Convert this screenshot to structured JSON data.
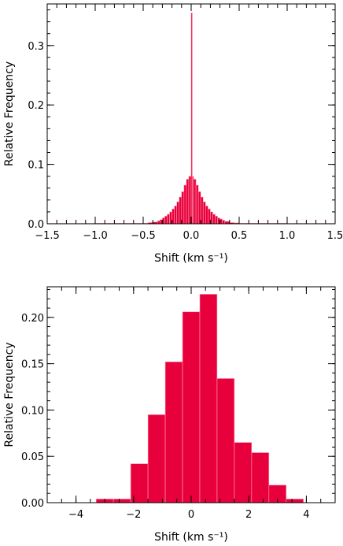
{
  "colors": {
    "bar_fill": "#e8003c",
    "bar_edge": "#ff9fb5",
    "axis": "#000000"
  },
  "chart_data": [
    {
      "type": "bar",
      "subtype": "histogram",
      "xlabel": "Shift (km s⁻¹)",
      "ylabel": "Relative Frequency",
      "xlim": [
        -1.5,
        1.5
      ],
      "ylim": [
        0.0,
        0.37
      ],
      "xticks": [
        -1.5,
        -1.0,
        -0.5,
        0.0,
        0.5,
        1.0,
        1.5
      ],
      "xtick_labels": [
        "−1.5",
        "−1.0",
        "−0.5",
        "0.0",
        "0.5",
        "1.0",
        "1.5"
      ],
      "yticks": [
        0.0,
        0.1,
        0.2,
        0.3
      ],
      "ytick_labels": [
        "0.0",
        "0.1",
        "0.2",
        "0.3"
      ],
      "bin_width": 0.025,
      "bins": [
        {
          "x0": -1.5,
          "x1": -1.0,
          "value": 0.0005
        },
        {
          "x0": -1.0,
          "x1": -0.5,
          "value": 0.0008
        },
        {
          "x0": -0.5,
          "x1": -0.45,
          "value": 0.001
        },
        {
          "x0": -0.45,
          "x1": -0.4,
          "value": 0.002
        },
        {
          "x0": -0.4,
          "x1": -0.35,
          "value": 0.003
        },
        {
          "x0": -0.35,
          "x1": -0.325,
          "value": 0.005
        },
        {
          "x0": -0.325,
          "x1": -0.3,
          "value": 0.007
        },
        {
          "x0": -0.3,
          "x1": -0.275,
          "value": 0.01
        },
        {
          "x0": -0.275,
          "x1": -0.25,
          "value": 0.013
        },
        {
          "x0": -0.25,
          "x1": -0.225,
          "value": 0.016
        },
        {
          "x0": -0.225,
          "x1": -0.2,
          "value": 0.02
        },
        {
          "x0": -0.2,
          "x1": -0.175,
          "value": 0.025
        },
        {
          "x0": -0.175,
          "x1": -0.15,
          "value": 0.03
        },
        {
          "x0": -0.15,
          "x1": -0.125,
          "value": 0.037
        },
        {
          "x0": -0.125,
          "x1": -0.1,
          "value": 0.045
        },
        {
          "x0": -0.1,
          "x1": -0.075,
          "value": 0.054
        },
        {
          "x0": -0.075,
          "x1": -0.05,
          "value": 0.065
        },
        {
          "x0": -0.05,
          "x1": -0.025,
          "value": 0.075
        },
        {
          "x0": -0.025,
          "x1": 0.0,
          "value": 0.08
        },
        {
          "x0": 0.0,
          "x1": 0.012,
          "value": 0.355
        },
        {
          "x0": 0.012,
          "x1": 0.025,
          "value": 0.08
        },
        {
          "x0": 0.025,
          "x1": 0.05,
          "value": 0.075
        },
        {
          "x0": 0.05,
          "x1": 0.075,
          "value": 0.065
        },
        {
          "x0": 0.075,
          "x1": 0.1,
          "value": 0.054
        },
        {
          "x0": 0.1,
          "x1": 0.125,
          "value": 0.045
        },
        {
          "x0": 0.125,
          "x1": 0.15,
          "value": 0.037
        },
        {
          "x0": 0.15,
          "x1": 0.175,
          "value": 0.03
        },
        {
          "x0": 0.175,
          "x1": 0.2,
          "value": 0.025
        },
        {
          "x0": 0.2,
          "x1": 0.225,
          "value": 0.02
        },
        {
          "x0": 0.225,
          "x1": 0.25,
          "value": 0.016
        },
        {
          "x0": 0.25,
          "x1": 0.275,
          "value": 0.013
        },
        {
          "x0": 0.275,
          "x1": 0.3,
          "value": 0.01
        },
        {
          "x0": 0.3,
          "x1": 0.325,
          "value": 0.008
        },
        {
          "x0": 0.325,
          "x1": 0.35,
          "value": 0.006
        },
        {
          "x0": 0.35,
          "x1": 0.4,
          "value": 0.004
        },
        {
          "x0": 0.4,
          "x1": 0.45,
          "value": 0.002
        },
        {
          "x0": 0.45,
          "x1": 0.5,
          "value": 0.0015
        },
        {
          "x0": 0.5,
          "x1": 1.0,
          "value": 0.0008
        },
        {
          "x0": 1.0,
          "x1": 1.5,
          "value": 0.0005
        }
      ]
    },
    {
      "type": "bar",
      "subtype": "histogram",
      "xlabel": "Shift (km s⁻¹)",
      "ylabel": "Relative Frequency",
      "xlim": [
        -5.0,
        5.0
      ],
      "ylim": [
        0.0,
        0.233
      ],
      "xticks": [
        -4,
        -2,
        0,
        2,
        4
      ],
      "xtick_labels": [
        "−4",
        "−2",
        "0",
        "2",
        "4"
      ],
      "yticks": [
        0.0,
        0.05,
        0.1,
        0.15,
        0.2
      ],
      "ytick_labels": [
        "0.00",
        "0.05",
        "0.10",
        "0.15",
        "0.20"
      ],
      "bin_width": 0.6,
      "bins": [
        {
          "x0": -3.3,
          "x1": -2.7,
          "value": 0.004
        },
        {
          "x0": -2.7,
          "x1": -2.1,
          "value": 0.004
        },
        {
          "x0": -2.1,
          "x1": -1.5,
          "value": 0.042
        },
        {
          "x0": -1.5,
          "x1": -0.9,
          "value": 0.095
        },
        {
          "x0": -0.9,
          "x1": -0.3,
          "value": 0.152
        },
        {
          "x0": -0.3,
          "x1": 0.3,
          "value": 0.206
        },
        {
          "x0": 0.3,
          "x1": 0.9,
          "value": 0.225
        },
        {
          "x0": 0.9,
          "x1": 1.5,
          "value": 0.134
        },
        {
          "x0": 1.5,
          "x1": 2.1,
          "value": 0.065
        },
        {
          "x0": 2.1,
          "x1": 2.7,
          "value": 0.054
        },
        {
          "x0": 2.7,
          "x1": 3.3,
          "value": 0.019
        },
        {
          "x0": 3.3,
          "x1": 3.9,
          "value": 0.004
        }
      ]
    }
  ]
}
